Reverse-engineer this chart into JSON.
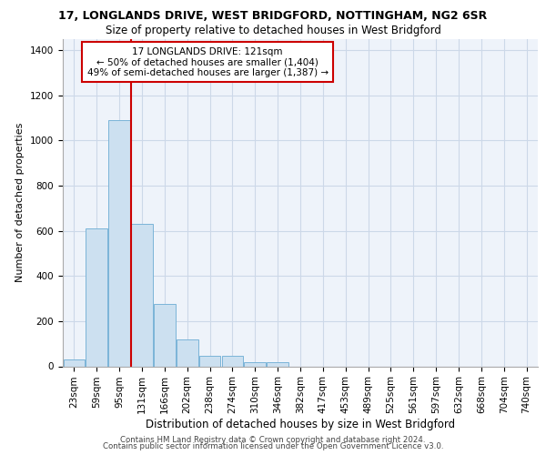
{
  "title": "17, LONGLANDS DRIVE, WEST BRIDGFORD, NOTTINGHAM, NG2 6SR",
  "subtitle": "Size of property relative to detached houses in West Bridgford",
  "xlabel": "Distribution of detached houses by size in West Bridgford",
  "ylabel": "Number of detached properties",
  "bar_color": "#cce0f0",
  "bar_edge_color": "#7ab4d8",
  "grid_color": "#ccd8e8",
  "background_color": "#eef3fa",
  "categories": [
    "23sqm",
    "59sqm",
    "95sqm",
    "131sqm",
    "166sqm",
    "202sqm",
    "238sqm",
    "274sqm",
    "310sqm",
    "346sqm",
    "382sqm",
    "417sqm",
    "453sqm",
    "489sqm",
    "525sqm",
    "561sqm",
    "597sqm",
    "632sqm",
    "668sqm",
    "704sqm",
    "740sqm"
  ],
  "values": [
    30,
    610,
    1090,
    630,
    275,
    120,
    45,
    45,
    18,
    18,
    0,
    0,
    0,
    0,
    0,
    0,
    0,
    0,
    0,
    0,
    0
  ],
  "vline_color": "#cc0000",
  "vline_x": 2.5,
  "annotation_line1": "17 LONGLANDS DRIVE: 121sqm",
  "annotation_line2": "← 50% of detached houses are smaller (1,404)",
  "annotation_line3": "49% of semi-detached houses are larger (1,387) →",
  "annotation_box_color": "#ffffff",
  "annotation_box_edge": "#cc0000",
  "ylim": [
    0,
    1450
  ],
  "yticks": [
    0,
    200,
    400,
    600,
    800,
    1000,
    1200,
    1400
  ],
  "footer1": "Contains HM Land Registry data © Crown copyright and database right 2024.",
  "footer2": "Contains public sector information licensed under the Open Government Licence v3.0.",
  "title_fontsize": 9,
  "subtitle_fontsize": 8.5,
  "ylabel_fontsize": 8,
  "xlabel_fontsize": 8.5,
  "tick_fontsize": 7.5,
  "annotation_fontsize": 7.5,
  "footer_fontsize": 6.2
}
